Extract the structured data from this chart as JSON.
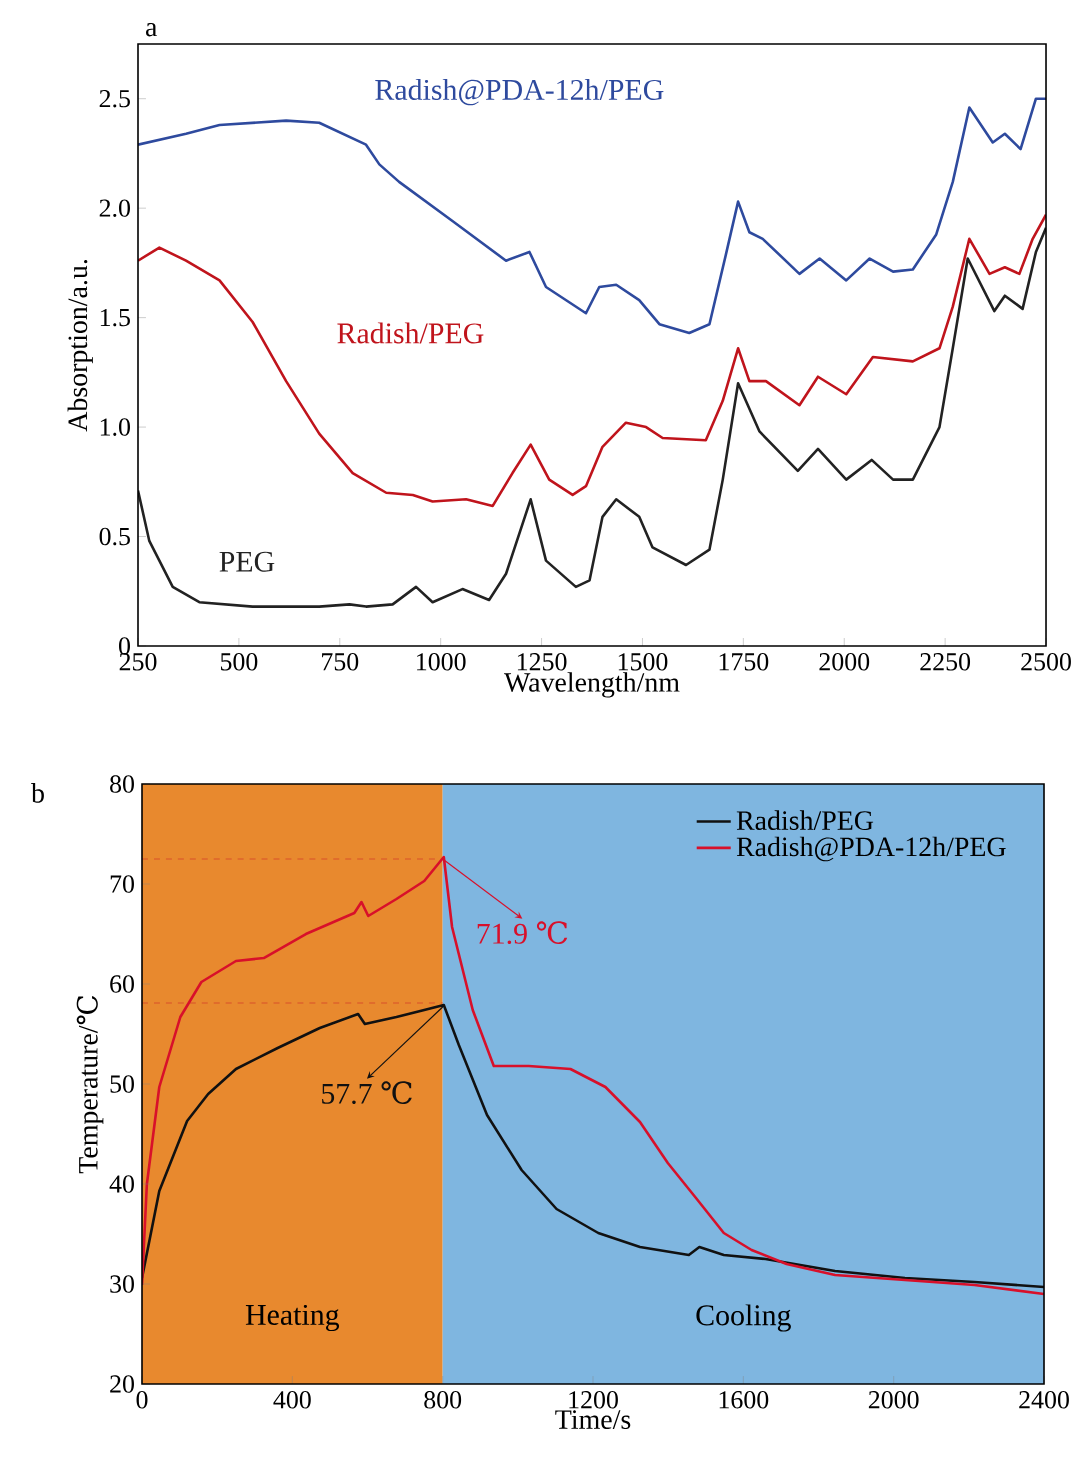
{
  "chart_data": [
    {
      "type": "line",
      "xlabel": "Wavelength/nm",
      "ylabel": "Absorption/a.u.",
      "xlim": [
        250,
        2500
      ],
      "ylim": [
        0,
        2.75
      ],
      "xticks": [
        250,
        500,
        750,
        1000,
        1250,
        1500,
        1750,
        2000,
        2250,
        2500
      ],
      "yticks": [
        0,
        0.5,
        {
          "value": 1,
          "label": "1.0"
        },
        1.5,
        {
          "value": 2,
          "label": "2.0"
        },
        2.5
      ],
      "annotations": [
        "a"
      ],
      "series": [
        {
          "name": "Radish@PDA-12h/PEG",
          "color": "#2e4a9e",
          "x": [
            250,
            369,
            452,
            617,
            699,
            815,
            848,
            897,
            1030,
            1162,
            1220,
            1261,
            1360,
            1393,
            1435,
            1492,
            1542,
            1616,
            1666,
            1707,
            1737,
            1765,
            1798,
            1889,
            1939,
            2005,
            2063,
            2121,
            2170,
            2228,
            2269,
            2310,
            2368,
            2398,
            2437,
            2475,
            2500
          ],
          "values": [
            2.29,
            2.34,
            2.38,
            2.4,
            2.39,
            2.29,
            2.2,
            2.12,
            1.94,
            1.76,
            1.8,
            1.64,
            1.52,
            1.64,
            1.65,
            1.58,
            1.47,
            1.43,
            1.47,
            1.79,
            2.03,
            1.89,
            1.86,
            1.7,
            1.77,
            1.67,
            1.77,
            1.71,
            1.72,
            1.88,
            2.12,
            2.46,
            2.3,
            2.34,
            2.27,
            2.5,
            2.5
          ]
        },
        {
          "name": "Radish/PEG",
          "color": "#c0141c",
          "x": [
            250,
            303,
            369,
            452,
            534,
            617,
            699,
            782,
            865,
            931,
            980,
            1063,
            1129,
            1178,
            1223,
            1269,
            1327,
            1360,
            1401,
            1459,
            1509,
            1550,
            1657,
            1699,
            1737,
            1765,
            1806,
            1889,
            1935,
            2005,
            2071,
            2170,
            2236,
            2269,
            2310,
            2360,
            2398,
            2434,
            2467,
            2500
          ],
          "values": [
            1.76,
            1.82,
            1.76,
            1.67,
            1.48,
            1.21,
            0.97,
            0.79,
            0.7,
            0.69,
            0.66,
            0.67,
            0.64,
            0.79,
            0.92,
            0.76,
            0.69,
            0.73,
            0.91,
            1.02,
            1.0,
            0.95,
            0.94,
            1.12,
            1.36,
            1.21,
            1.21,
            1.1,
            1.23,
            1.15,
            1.32,
            1.3,
            1.36,
            1.55,
            1.86,
            1.7,
            1.73,
            1.7,
            1.86,
            1.97
          ]
        },
        {
          "name": "PEG",
          "color": "#222222",
          "x": [
            250,
            278,
            336,
            402,
            534,
            699,
            774,
            815,
            881,
            939,
            980,
            1054,
            1120,
            1162,
            1223,
            1261,
            1335,
            1369,
            1401,
            1435,
            1492,
            1525,
            1608,
            1666,
            1699,
            1737,
            1790,
            1885,
            1935,
            2005,
            2068,
            2121,
            2170,
            2236,
            2269,
            2306,
            2372,
            2398,
            2442,
            2475,
            2500
          ],
          "values": [
            0.71,
            0.48,
            0.27,
            0.2,
            0.18,
            0.18,
            0.19,
            0.18,
            0.19,
            0.27,
            0.2,
            0.26,
            0.21,
            0.33,
            0.67,
            0.39,
            0.27,
            0.3,
            0.59,
            0.67,
            0.59,
            0.45,
            0.37,
            0.44,
            0.76,
            1.2,
            0.98,
            0.8,
            0.9,
            0.76,
            0.85,
            0.76,
            0.76,
            1.0,
            1.36,
            1.77,
            1.53,
            1.6,
            1.54,
            1.8,
            1.91
          ]
        }
      ]
    },
    {
      "type": "line",
      "xlabel": "Time/s",
      "ylabel": "Temperature/℃",
      "xlim": [
        0,
        2400
      ],
      "ylim": [
        20,
        80
      ],
      "xticks": [
        0,
        400,
        800,
        1200,
        1600,
        2000,
        2400
      ],
      "yticks": [
        20,
        30,
        40,
        50,
        60,
        70,
        80
      ],
      "legend": "top right",
      "bands": [
        {
          "axis": "x",
          "from": 0,
          "to": 800,
          "label": "Heating",
          "color": "#e8892e"
        },
        {
          "axis": "x",
          "from": 800,
          "to": 2400,
          "label": "Cooling",
          "color": "#7fb6e0"
        }
      ],
      "ref_lines": [
        {
          "axis": "y",
          "value": 72.5,
          "color": "#d8502a",
          "line_style": "dashed"
        },
        {
          "axis": "y",
          "value": 58.1,
          "color": "#d8502a",
          "line_style": "dashed"
        }
      ],
      "annotations": [
        {
          "text": "57.7 ℃",
          "x": 800,
          "y": 57.7
        },
        {
          "text": "71.9 ℃",
          "x": 800,
          "y": 72.5
        },
        "b"
      ],
      "series": [
        {
          "name": "Radish/PEG",
          "color": "#111111",
          "x": [
            0,
            46,
            120,
            176,
            250,
            361,
            473,
            575,
            593,
            677,
            751,
            803,
            843,
            918,
            1010,
            1103,
            1214,
            1325,
            1455,
            1483,
            1548,
            1659,
            1844,
            2030,
            2215,
            2400
          ],
          "values": [
            30.6,
            39.3,
            46.3,
            49.0,
            51.5,
            53.6,
            55.6,
            57.0,
            56.0,
            56.7,
            57.4,
            57.9,
            53.9,
            46.9,
            41.4,
            37.5,
            35.1,
            33.7,
            32.9,
            33.7,
            32.9,
            32.5,
            31.3,
            30.6,
            30.2,
            29.7
          ]
        },
        {
          "name": "Radish@PDA-12h/PEG",
          "color": "#d8102a",
          "x": [
            0,
            13,
            46,
            102,
            158,
            250,
            324,
            436,
            565,
            584,
            602,
            677,
            751,
            803,
            825,
            880,
            936,
            1029,
            1140,
            1233,
            1325,
            1399,
            1474,
            1548,
            1622,
            1715,
            1844,
            2030,
            2215,
            2400
          ],
          "values": [
            29.9,
            40.0,
            49.7,
            56.7,
            60.2,
            62.3,
            62.6,
            65.0,
            67.1,
            68.2,
            66.8,
            68.5,
            70.3,
            72.7,
            65.7,
            57.4,
            51.8,
            51.8,
            51.5,
            49.7,
            46.2,
            42.1,
            38.6,
            35.1,
            33.4,
            32.0,
            30.9,
            30.4,
            29.9,
            29.0
          ]
        }
      ]
    }
  ]
}
